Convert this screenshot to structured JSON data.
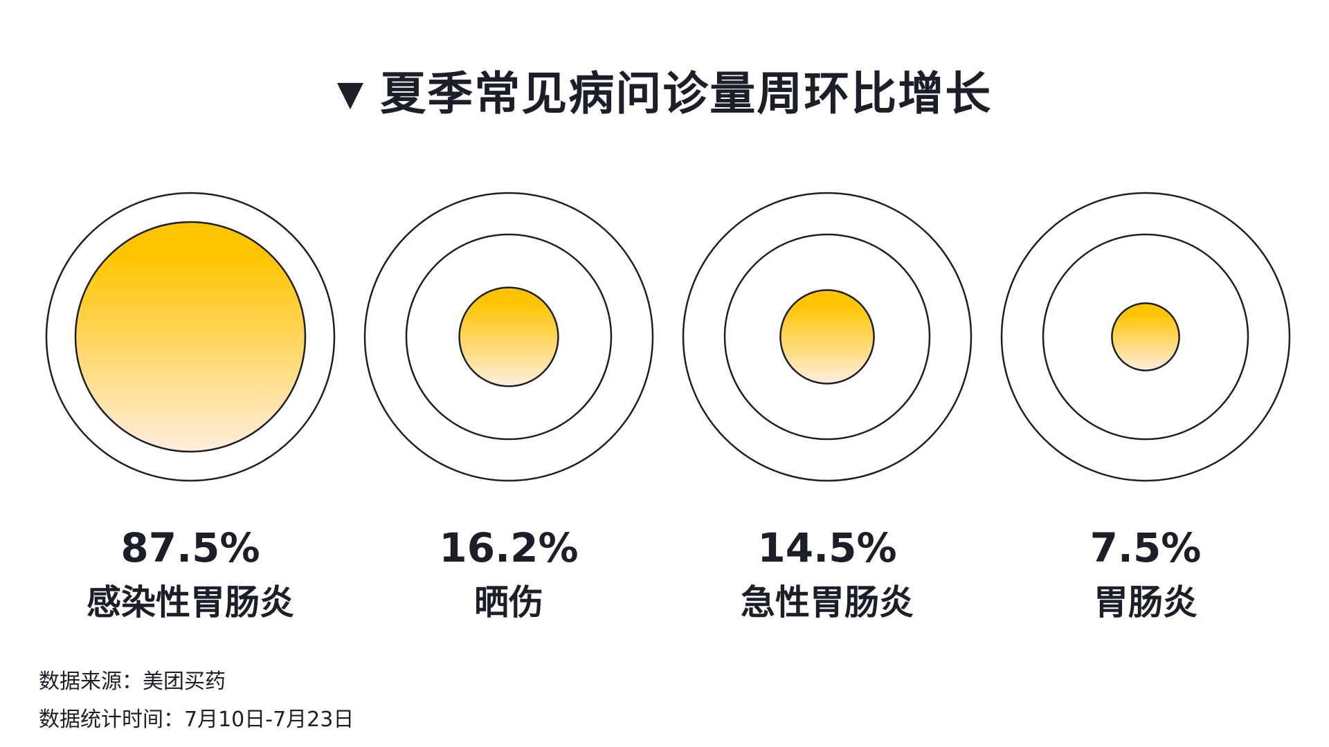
{
  "title": "夏季常见病问诊量周环比增长",
  "title_marker": "▼",
  "colors": {
    "text": "#1c1f2a",
    "fill_top": "#ffc400",
    "fill_bottom": "#ffeede",
    "ring_stroke": "#1c1f2a"
  },
  "chart_data": {
    "type": "bubble",
    "unit": "%",
    "categories": [
      "感染性胃肠炎",
      "晒伤",
      "急性胃肠炎",
      "胃肠炎"
    ],
    "values": [
      87.5,
      16.2,
      14.5,
      7.5
    ],
    "value_labels": [
      "87.5%",
      "16.2%",
      "14.5%",
      "7.5%"
    ]
  },
  "footer": {
    "source": "数据来源：美团买药",
    "period": "数据统计时间：7月10日-7月23日"
  }
}
